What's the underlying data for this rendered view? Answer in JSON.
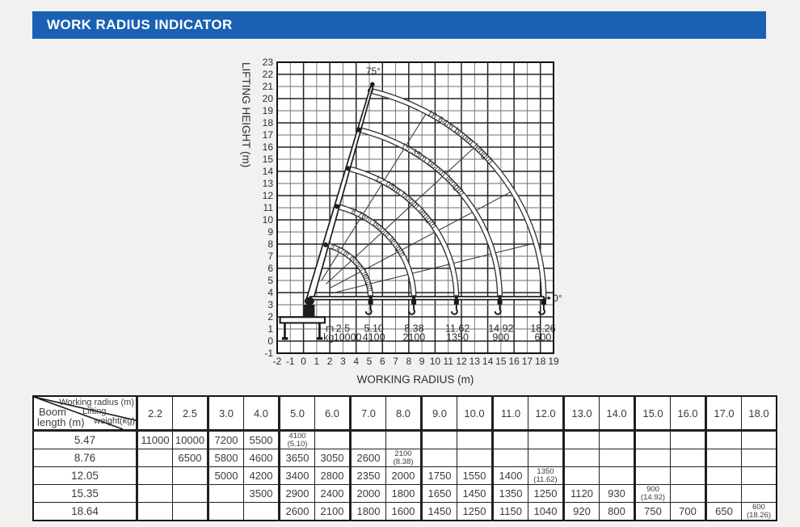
{
  "header": {
    "title": "WORK RADIUS INDICATOR",
    "bar_color": "#1b61b3"
  },
  "chart_data": {
    "type": "line",
    "title": "",
    "xlabel": "WORKING RADIUS (m)",
    "ylabel": "LIFTING HEIGHT (m)",
    "xlim": [
      -2,
      19
    ],
    "ylim": [
      -1,
      23
    ],
    "grid": true,
    "xticks": [
      -2,
      -1,
      0,
      1,
      2,
      3,
      4,
      5,
      6,
      7,
      8,
      9,
      10,
      11,
      12,
      13,
      14,
      15,
      16,
      17,
      18,
      19
    ],
    "yticks": [
      -1,
      0,
      1,
      2,
      3,
      4,
      5,
      6,
      7,
      8,
      9,
      10,
      11,
      12,
      13,
      14,
      15,
      16,
      17,
      18,
      19,
      20,
      21,
      22,
      23
    ],
    "pivot": {
      "x": 0.5,
      "y": 3.5
    },
    "max_angle_label": "75°",
    "min_angle_label": "0°",
    "radial_angles_deg": [
      15,
      30,
      45,
      60
    ],
    "booms": [
      {
        "label": "5.47m boom length",
        "max_radius_m": 5.1
      },
      {
        "label": "8.76m boom length",
        "max_radius_m": 8.38
      },
      {
        "label": "12.05m boom length",
        "max_radius_m": 11.62
      },
      {
        "label": "15.35m boom length",
        "max_radius_m": 14.92
      },
      {
        "label": "18.64m boom length",
        "max_radius_m": 18.26
      }
    ],
    "radius_load_scale": {
      "m_label": "m",
      "kg_label": "kg",
      "radii": [
        "2.5",
        "5.10",
        "8.38",
        "11.62",
        "14.92",
        "18.26"
      ],
      "loads": [
        "10000",
        "4100",
        "2100",
        "1350",
        "900",
        "600"
      ]
    }
  },
  "table": {
    "corner": {
      "top_label": "Working radius (m)",
      "mid_label_1": "Lifting",
      "mid_label_2": "weight(kg)",
      "bottom_label_1": "Boom",
      "bottom_label_2": "length (m)"
    },
    "columns": [
      "2.2",
      "2.5",
      "3.0",
      "4.0",
      "5.0",
      "6.0",
      "7.0",
      "8.0",
      "9.0",
      "10.0",
      "11.0",
      "12.0",
      "13.0",
      "14.0",
      "15.0",
      "16.0",
      "17.0",
      "18.0"
    ],
    "rows": [
      {
        "boom_length": "5.47",
        "values": [
          "11000",
          "10000",
          "7200",
          "5500",
          "4100\n(5.10)",
          "",
          "",
          "",
          "",
          "",
          "",
          "",
          "",
          "",
          "",
          "",
          "",
          ""
        ]
      },
      {
        "boom_length": "8.76",
        "values": [
          "",
          "6500",
          "5800",
          "4600",
          "3650",
          "3050",
          "2600",
          "2100\n(8.38)",
          "",
          "",
          "",
          "",
          "",
          "",
          "",
          "",
          "",
          ""
        ]
      },
      {
        "boom_length": "12.05",
        "values": [
          "",
          "",
          "5000",
          "4200",
          "3400",
          "2800",
          "2350",
          "2000",
          "1750",
          "1550",
          "1400",
          "1350\n(11.62)",
          "",
          "",
          "",
          "",
          "",
          ""
        ]
      },
      {
        "boom_length": "15.35",
        "values": [
          "",
          "",
          "",
          "3500",
          "2900",
          "2400",
          "2000",
          "1800",
          "1650",
          "1450",
          "1350",
          "1250",
          "1120",
          "930",
          "900\n(14.92)",
          "",
          "",
          ""
        ]
      },
      {
        "boom_length": "18.64",
        "values": [
          "",
          "",
          "",
          "",
          "2600",
          "2100",
          "1800",
          "1600",
          "1450",
          "1250",
          "1150",
          "1040",
          "920",
          "800",
          "750",
          "700",
          "650",
          "600\n(18.26)"
        ]
      }
    ]
  }
}
